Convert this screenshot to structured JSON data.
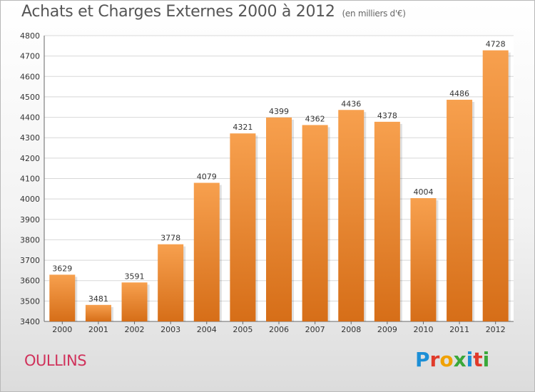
{
  "title": "Achats et Charges Externes 2000 à 2012",
  "subtitle": "(en milliers d'€)",
  "city": "OULLINS",
  "logo": {
    "letters": [
      "P",
      "r",
      "o",
      "x",
      "i",
      "t",
      "i"
    ],
    "colors": [
      "#1c8fd6",
      "#e03a2a",
      "#f0a100",
      "#3aa83a",
      "#1c8fd6",
      "#e03a2a",
      "#3aa83a"
    ]
  },
  "colors": {
    "bar_light": "#f7a04e",
    "bar_dark": "#d66e18",
    "city": "#d0325b",
    "grid": "#d8d8d8"
  },
  "chart_data": {
    "type": "bar",
    "categories": [
      "2000",
      "2001",
      "2002",
      "2003",
      "2004",
      "2005",
      "2006",
      "2007",
      "2008",
      "2009",
      "2010",
      "2011",
      "2012"
    ],
    "values": [
      3629,
      3481,
      3591,
      3778,
      4079,
      4321,
      4399,
      4362,
      4436,
      4378,
      4004,
      4486,
      4728
    ],
    "ylim": [
      3400,
      4800
    ],
    "yticks": [
      3400,
      3500,
      3600,
      3700,
      3800,
      3900,
      4000,
      4100,
      4200,
      4300,
      4400,
      4500,
      4600,
      4700,
      4800
    ],
    "grid": true
  }
}
